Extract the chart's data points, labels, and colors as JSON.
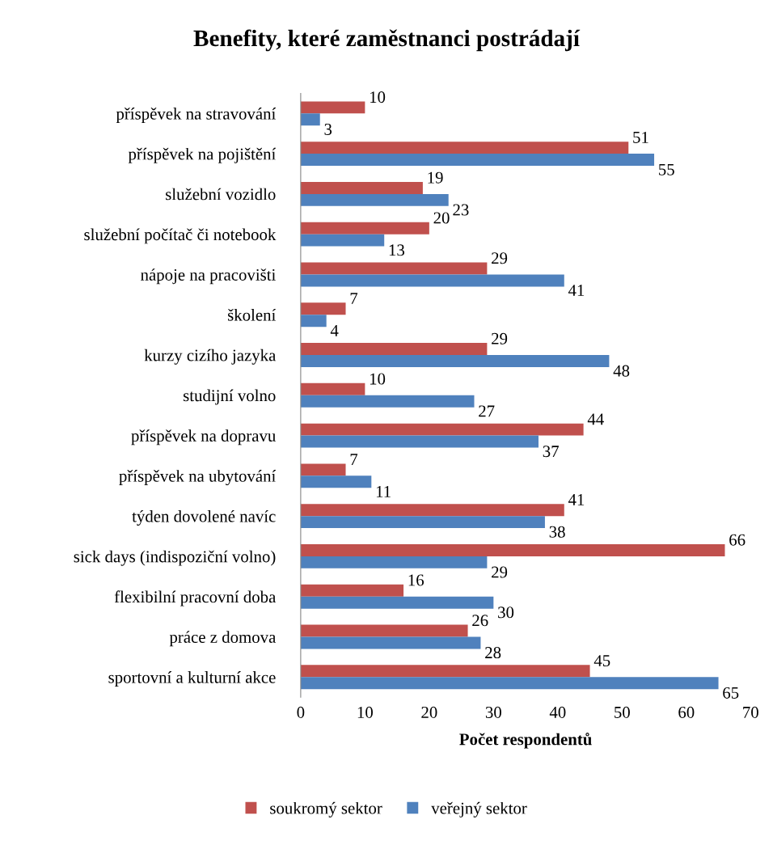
{
  "chart_data": {
    "type": "bar",
    "orientation": "horizontal",
    "title": "Benefity, které zaměstnanci postrádají",
    "xlabel": "Počet respondentů",
    "categories": [
      "příspěvek na stravování",
      "příspěvek na pojištění",
      "služební vozidlo",
      "služební počítač či notebook",
      "nápoje na pracovišti",
      "školení",
      "kurzy cizího jazyka",
      "studijní volno",
      "příspěvek na dopravu",
      "příspěvek na ubytování",
      "týden dovolené navíc",
      "sick days (indispoziční volno)",
      "flexibilní pracovní doba",
      "práce z domova",
      "sportovní a kulturní akce"
    ],
    "series": [
      {
        "name": "soukromý sektor",
        "color": "#c0504d",
        "values": [
          10,
          51,
          19,
          20,
          29,
          7,
          29,
          10,
          44,
          7,
          41,
          66,
          16,
          26,
          45
        ]
      },
      {
        "name": "veřejný sektor",
        "color": "#4f81bd",
        "values": [
          3,
          55,
          23,
          13,
          41,
          4,
          48,
          27,
          37,
          11,
          38,
          29,
          30,
          28,
          65
        ]
      }
    ],
    "xlim": [
      0,
      70
    ],
    "xticks": [
      0,
      10,
      20,
      30,
      40,
      50,
      60,
      70
    ],
    "grid": false,
    "legend": "bottom",
    "data_labels": true
  }
}
